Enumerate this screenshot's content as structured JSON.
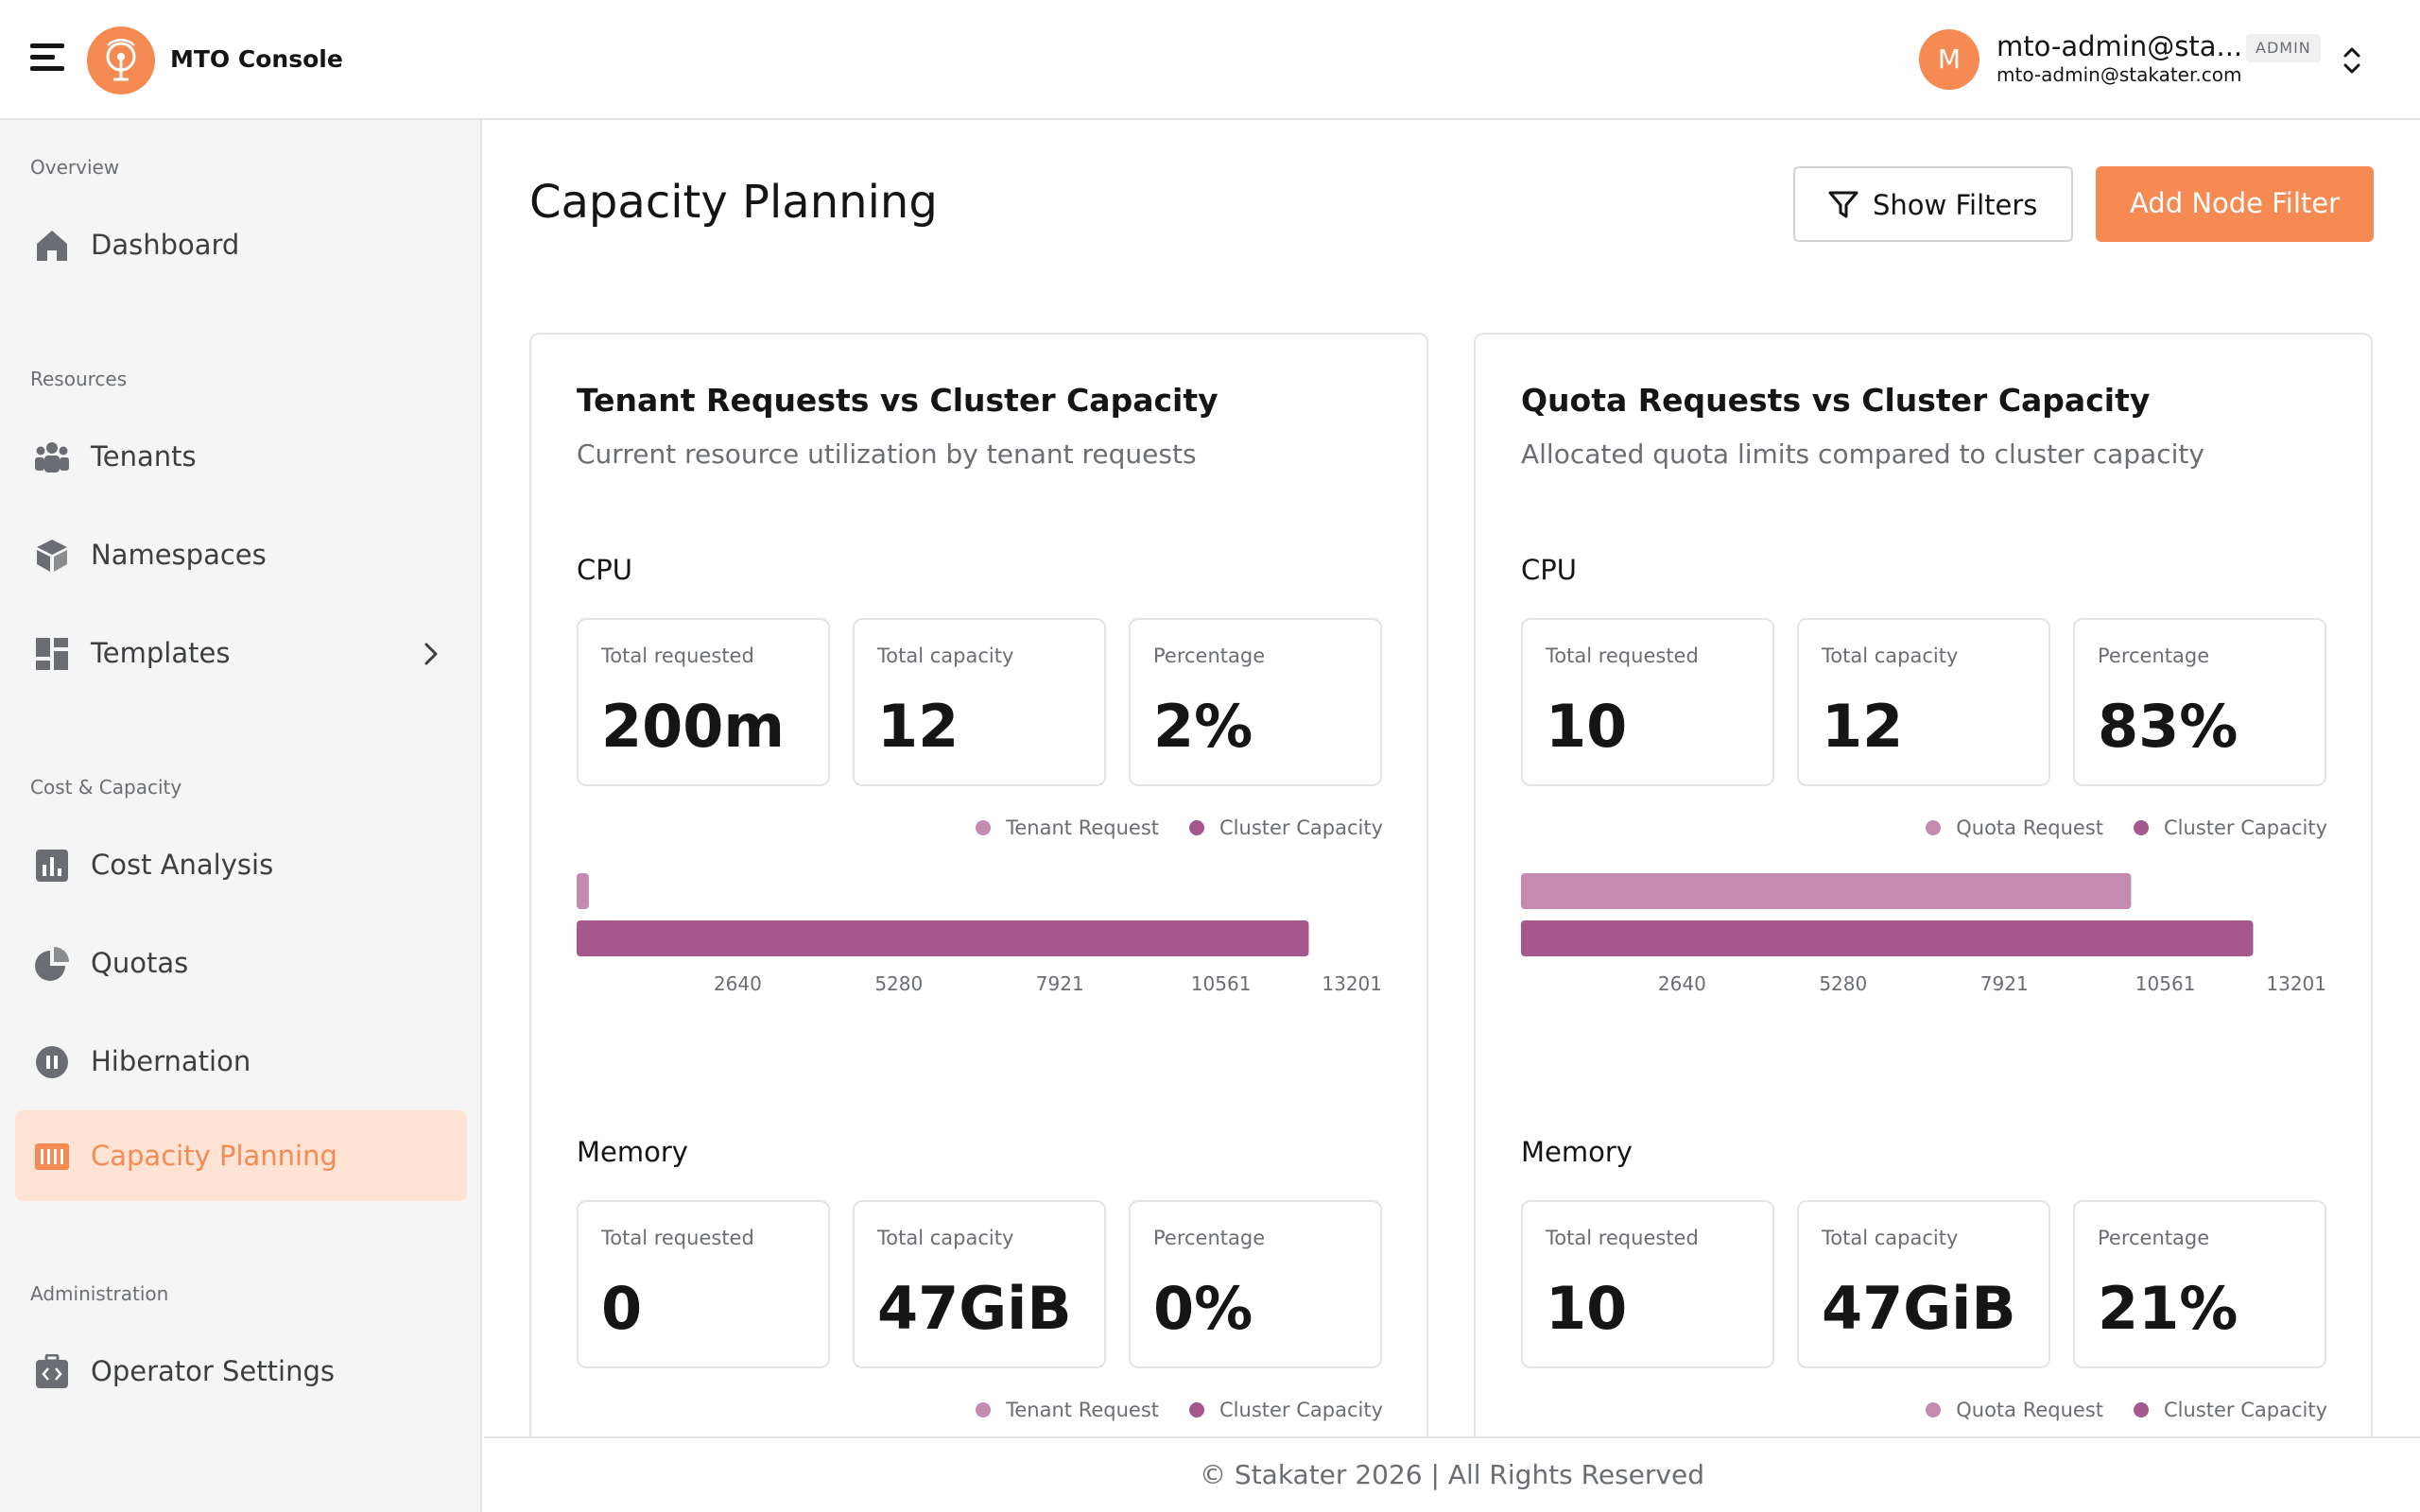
{
  "header": {
    "app_title": "MTO Console",
    "user_initial": "M",
    "user_name": "mto-admin@sta...",
    "user_email": "mto-admin@stakater.com",
    "role_badge": "ADMIN"
  },
  "sidebar": {
    "sections": [
      {
        "label": "Overview",
        "items": [
          {
            "label": "Dashboard",
            "icon": "home-icon"
          }
        ]
      },
      {
        "label": "Resources",
        "items": [
          {
            "label": "Tenants",
            "icon": "users-icon"
          },
          {
            "label": "Namespaces",
            "icon": "cube-icon"
          },
          {
            "label": "Templates",
            "icon": "grid-icon"
          }
        ]
      },
      {
        "label": "Cost & Capacity",
        "items": [
          {
            "label": "Cost Analysis",
            "icon": "bar-chart-icon"
          },
          {
            "label": "Quotas",
            "icon": "pie-chart-icon"
          },
          {
            "label": "Hibernation",
            "icon": "pause-icon"
          },
          {
            "label": "Capacity Planning",
            "icon": "capacity-icon",
            "active": true
          }
        ]
      },
      {
        "label": "Administration",
        "items": [
          {
            "label": "Operator Settings",
            "icon": "settings-briefcase-icon"
          }
        ]
      }
    ]
  },
  "page": {
    "title": "Capacity Planning",
    "show_filters_label": "Show Filters",
    "add_node_filter_label": "Add Node Filter"
  },
  "colors": {
    "accent": "#f58a53",
    "request_bar": "#c48aaf",
    "capacity_bar": "#a5578e"
  },
  "cards": [
    {
      "title": "Tenant Requests vs Cluster Capacity",
      "subtitle": "Current resource utilization by tenant requests",
      "cpu": {
        "title": "CPU",
        "metrics": [
          {
            "label": "Total requested",
            "value": "200m"
          },
          {
            "label": "Total capacity",
            "value": "12"
          },
          {
            "label": "Percentage",
            "value": "2%"
          }
        ],
        "legend": [
          "Tenant Request",
          "Cluster Capacity"
        ]
      },
      "memory": {
        "title": "Memory",
        "metrics": [
          {
            "label": "Total requested",
            "value": "0"
          },
          {
            "label": "Total capacity",
            "value": "47GiB"
          },
          {
            "label": "Percentage",
            "value": "0%"
          }
        ],
        "legend": [
          "Tenant Request",
          "Cluster Capacity"
        ]
      }
    },
    {
      "title": "Quota Requests vs Cluster Capacity",
      "subtitle": "Allocated quota limits compared to cluster capacity",
      "cpu": {
        "title": "CPU",
        "metrics": [
          {
            "label": "Total requested",
            "value": "10"
          },
          {
            "label": "Total capacity",
            "value": "12"
          },
          {
            "label": "Percentage",
            "value": "83%"
          }
        ],
        "legend": [
          "Quota Request",
          "Cluster Capacity"
        ]
      },
      "memory": {
        "title": "Memory",
        "metrics": [
          {
            "label": "Total requested",
            "value": "10"
          },
          {
            "label": "Total capacity",
            "value": "47GiB"
          },
          {
            "label": "Percentage",
            "value": "21%"
          }
        ],
        "legend": [
          "Quota Request",
          "Cluster Capacity"
        ]
      }
    }
  ],
  "chart_data": [
    {
      "type": "bar",
      "orientation": "horizontal",
      "title": "",
      "xticks": [
        2640,
        5280,
        7921,
        10561,
        13201
      ],
      "xlim": [
        0,
        13201
      ],
      "series": [
        {
          "name": "Tenant Request",
          "values": [
            200
          ]
        },
        {
          "name": "Cluster Capacity",
          "values": [
            12000
          ]
        }
      ]
    },
    {
      "type": "bar",
      "orientation": "horizontal",
      "title": "",
      "xticks": [
        2640,
        5280,
        7921,
        10561,
        13201
      ],
      "xlim": [
        0,
        13201
      ],
      "series": [
        {
          "name": "Quota Request",
          "values": [
            10000
          ]
        },
        {
          "name": "Cluster Capacity",
          "values": [
            12000
          ]
        }
      ]
    }
  ],
  "footer": {
    "text": "© Stakater 2026 | All Rights Reserved"
  }
}
